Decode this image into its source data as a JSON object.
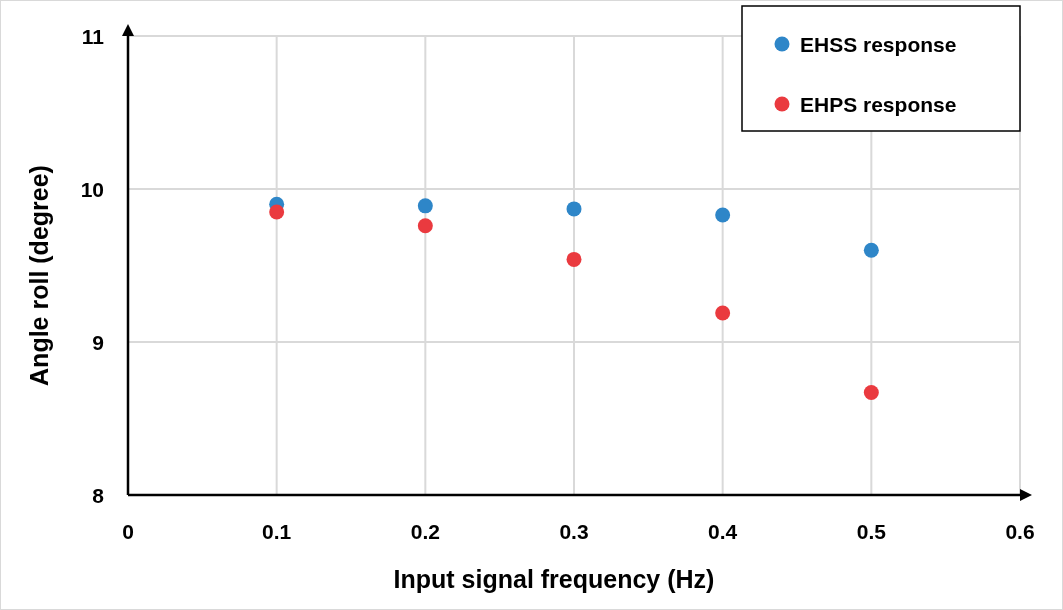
{
  "chart_data": {
    "type": "scatter",
    "xlabel": "Input signal frequency (Hz)",
    "ylabel": "Angle roll (degree)",
    "x": [
      0.1,
      0.2,
      0.3,
      0.4,
      0.5
    ],
    "series": [
      {
        "name": "EHSS response",
        "color": "#2e86c8",
        "values": [
          9.9,
          9.89,
          9.87,
          9.83,
          9.6
        ]
      },
      {
        "name": "EHPS response",
        "color": "#ea3a3f",
        "values": [
          9.85,
          9.76,
          9.54,
          9.19,
          8.67
        ]
      }
    ],
    "xlim": [
      0,
      0.6
    ],
    "xticks": [
      0,
      0.1,
      0.2,
      0.3,
      0.4,
      0.5,
      0.6
    ],
    "ylim": [
      8,
      11
    ],
    "yticks": [
      8,
      9,
      10,
      11
    ],
    "grid": true,
    "legend": "top right",
    "marker": "circle"
  }
}
